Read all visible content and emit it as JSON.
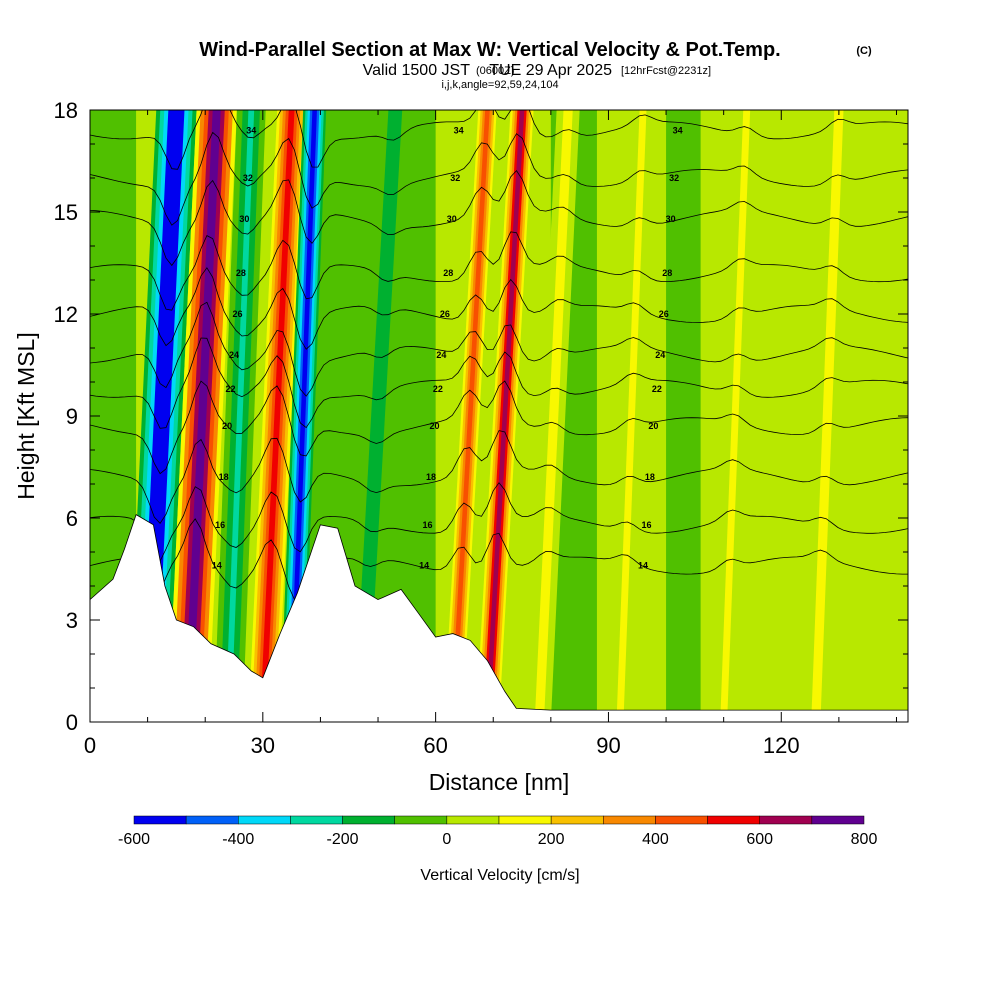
{
  "header": {
    "title": "Wind-Parallel Section at Max W: Vertical Velocity & Pot.Temp.",
    "copyright": "(C)",
    "valid_prefix": "Valid 1500 JST",
    "valid_utc": "(0600Z)",
    "valid_date": "TUE 29 Apr 2025",
    "forecast": "[12hrFcst@2231z]",
    "indices": "i,j,k,angle=92,59,24,104"
  },
  "chart_data": {
    "type": "heatmap",
    "xlabel": "Distance [nm]",
    "ylabel": "Height [Kft MSL]",
    "xlim": [
      0,
      142
    ],
    "ylim": [
      0,
      18
    ],
    "x_ticks": [
      "0",
      "30",
      "60",
      "90",
      "120"
    ],
    "y_ticks": [
      "0",
      "3",
      "6",
      "9",
      "12",
      "15",
      "18"
    ],
    "colorbar": {
      "label": "Vertical Velocity [cm/s]",
      "tick_labels": [
        "-600",
        "-400",
        "-200",
        "0",
        "200",
        "400",
        "600",
        "800"
      ],
      "levels": [
        -600,
        -500,
        -400,
        -300,
        -200,
        -100,
        0,
        100,
        200,
        300,
        400,
        500,
        600,
        700,
        800
      ],
      "colors": [
        "#0000f0",
        "#0060f8",
        "#00d8f8",
        "#00d8a0",
        "#00b030",
        "#50c000",
        "#b8e800",
        "#f8f800",
        "#f8c000",
        "#f88800",
        "#f85000",
        "#f00000",
        "#a00050",
        "#600090"
      ]
    },
    "bands": [
      {
        "x": 10,
        "w": 7,
        "tilt": 5,
        "value": -650
      },
      {
        "x": 17,
        "w": 7,
        "tilt": 5,
        "value": 750
      },
      {
        "x": 24,
        "w": 5,
        "tilt": 4,
        "value": -250
      },
      {
        "x": 30,
        "w": 5,
        "tilt": 5,
        "value": 550
      },
      {
        "x": 35,
        "w": 4,
        "tilt": 4,
        "value": -550
      },
      {
        "x": 47,
        "w": 6,
        "tilt": 6,
        "value": -150
      },
      {
        "x": 63,
        "w": 4,
        "tilt": 6,
        "value": 450
      },
      {
        "x": 69,
        "w": 4,
        "tilt": 6,
        "value": 650
      },
      {
        "x": 78,
        "w": 4,
        "tilt": 5,
        "value": 150
      },
      {
        "x": 92,
        "w": 3,
        "tilt": 4,
        "value": 150
      },
      {
        "x": 110,
        "w": 3,
        "tilt": 4,
        "value": 150
      },
      {
        "x": 126,
        "w": 4,
        "tilt": 4,
        "value": 150
      }
    ],
    "terrain": [
      [
        0,
        3.6
      ],
      [
        4,
        4.2
      ],
      [
        6,
        5.1
      ],
      [
        8,
        6.1
      ],
      [
        11,
        5.8
      ],
      [
        13,
        4.0
      ],
      [
        15,
        3.0
      ],
      [
        18,
        2.8
      ],
      [
        21,
        2.3
      ],
      [
        25,
        2.0
      ],
      [
        28,
        1.5
      ],
      [
        30,
        1.3
      ],
      [
        33,
        2.6
      ],
      [
        36,
        3.8
      ],
      [
        40,
        5.8
      ],
      [
        43,
        5.7
      ],
      [
        46,
        4.0
      ],
      [
        50,
        3.6
      ],
      [
        54,
        3.9
      ],
      [
        57,
        3.2
      ],
      [
        60,
        2.5
      ],
      [
        63,
        2.6
      ],
      [
        66,
        2.4
      ],
      [
        69,
        1.8
      ],
      [
        72,
        0.9
      ],
      [
        74,
        0.4
      ],
      [
        80,
        0.35
      ],
      [
        142,
        0.35
      ]
    ],
    "theta_contours": [
      {
        "level": "14",
        "h": 4.6
      },
      {
        "level": "16",
        "h": 5.8
      },
      {
        "level": "18",
        "h": 7.2
      },
      {
        "level": "20",
        "h": 8.7
      },
      {
        "level": "22",
        "h": 9.8
      },
      {
        "level": "24",
        "h": 10.8
      },
      {
        "level": "26",
        "h": 12.0
      },
      {
        "level": "28",
        "h": 13.2
      },
      {
        "level": "30",
        "h": 14.8
      },
      {
        "level": "32",
        "h": 16.0
      },
      {
        "level": "34",
        "h": 17.4
      }
    ]
  }
}
